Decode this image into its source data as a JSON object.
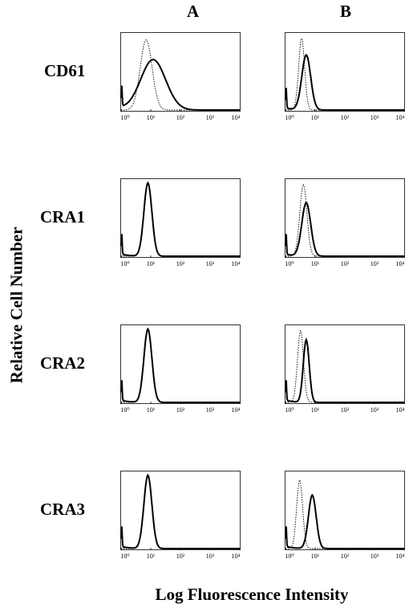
{
  "figure": {
    "column_headers": [
      "A",
      "B"
    ],
    "row_labels": [
      "CD61",
      "CRA1",
      "CRA2",
      "CRA3"
    ],
    "y_axis_label": "Relative Cell Number",
    "x_axis_label": "Log Fluorescence Intensity"
  },
  "chart_data": {
    "type": "line",
    "x_scale": "log",
    "xlim": [
      1,
      10000
    ],
    "x_tick_labels": [
      "10⁰",
      "10¹",
      "10²",
      "10³",
      "10⁴"
    ],
    "panels": [
      {
        "row": "CD61",
        "column": "A",
        "series": [
          {
            "style": "dotted",
            "peak_x": 7,
            "width_decades": 0.2,
            "height": 0.92
          },
          {
            "style": "solid",
            "peak_x": 12,
            "width_decades": 0.42,
            "height": 0.66
          }
        ]
      },
      {
        "row": "CD61",
        "column": "B",
        "series": [
          {
            "style": "dotted",
            "peak_x": 3.5,
            "width_decades": 0.1,
            "height": 0.94
          },
          {
            "style": "solid",
            "peak_x": 5,
            "width_decades": 0.15,
            "height": 0.72
          }
        ]
      },
      {
        "row": "CRA1",
        "column": "A",
        "series": [
          {
            "style": "dotted",
            "peak_x": 8,
            "width_decades": 0.13,
            "height": 0.97
          },
          {
            "style": "solid",
            "peak_x": 8,
            "width_decades": 0.135,
            "height": 0.96
          }
        ]
      },
      {
        "row": "CRA1",
        "column": "B",
        "series": [
          {
            "style": "dotted",
            "peak_x": 4,
            "width_decades": 0.12,
            "height": 0.94
          },
          {
            "style": "solid",
            "peak_x": 5,
            "width_decades": 0.15,
            "height": 0.7
          }
        ]
      },
      {
        "row": "CRA2",
        "column": "A",
        "series": [
          {
            "style": "dotted",
            "peak_x": 8,
            "width_decades": 0.13,
            "height": 0.97
          },
          {
            "style": "solid",
            "peak_x": 8,
            "width_decades": 0.135,
            "height": 0.96
          }
        ]
      },
      {
        "row": "CRA2",
        "column": "B",
        "series": [
          {
            "style": "dotted",
            "peak_x": 3.2,
            "width_decades": 0.1,
            "height": 0.94
          },
          {
            "style": "solid",
            "peak_x": 5,
            "width_decades": 0.1,
            "height": 0.82
          }
        ]
      },
      {
        "row": "CRA3",
        "column": "A",
        "series": [
          {
            "style": "dotted",
            "peak_x": 8,
            "width_decades": 0.13,
            "height": 0.97
          },
          {
            "style": "solid",
            "peak_x": 8,
            "width_decades": 0.135,
            "height": 0.96
          }
        ]
      },
      {
        "row": "CRA3",
        "column": "B",
        "series": [
          {
            "style": "dotted",
            "peak_x": 3,
            "width_decades": 0.1,
            "height": 0.9
          },
          {
            "style": "solid",
            "peak_x": 8,
            "width_decades": 0.13,
            "height": 0.7
          }
        ]
      }
    ]
  }
}
